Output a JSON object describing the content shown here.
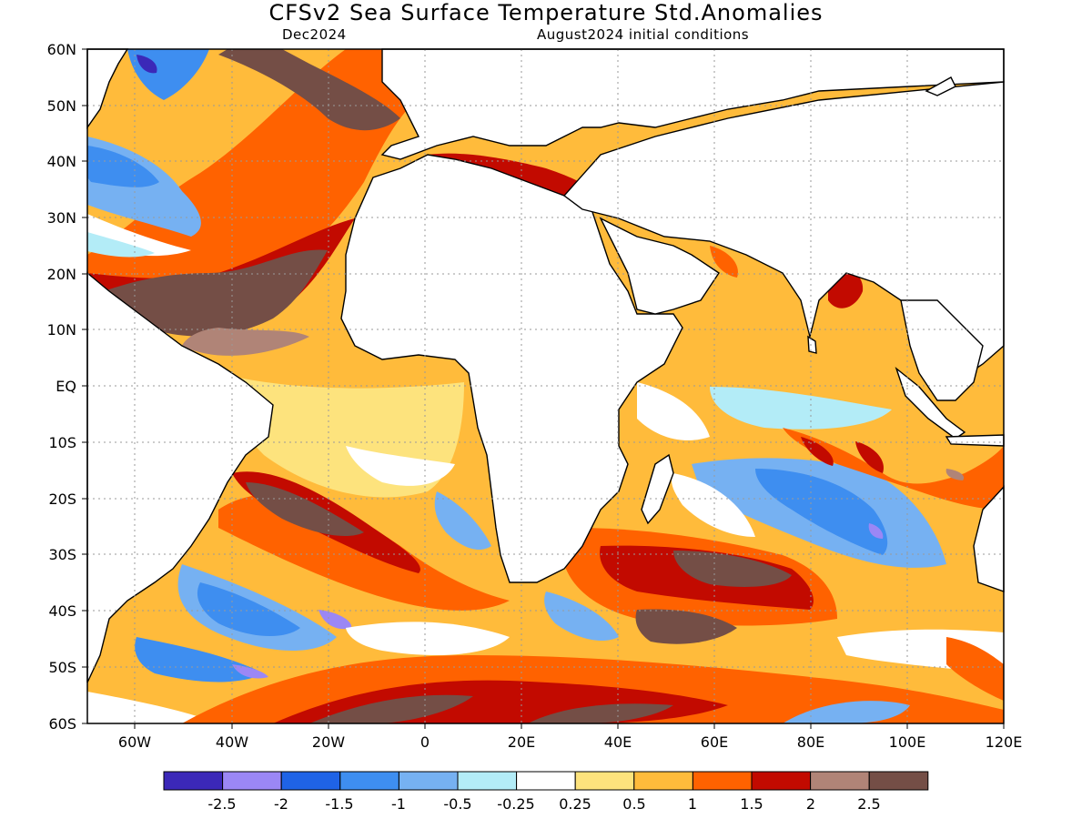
{
  "title": "CFSv2 Sea Surface Temperature Std.Anomalies",
  "subtitle_left": "Dec2024",
  "subtitle_right": "August2024 initial conditions",
  "lat_labels": [
    "60N",
    "50N",
    "40N",
    "30N",
    "20N",
    "10N",
    "EQ",
    "10S",
    "20S",
    "30S",
    "40S",
    "50S",
    "60S"
  ],
  "lon_labels": [
    "60W",
    "40W",
    "20W",
    "0",
    "20E",
    "40E",
    "60E",
    "80E",
    "100E",
    "120E"
  ],
  "colorbar": {
    "colors": [
      "#3b28b8",
      "#9b87f5",
      "#1f63e6",
      "#3e8ef0",
      "#76b1f2",
      "#b3ecf7",
      "#ffffff",
      "#fde37d",
      "#ffbb3b",
      "#ff6200",
      "#c20a00",
      "#b08477",
      "#744e46"
    ],
    "labels": [
      "-2.5",
      "-2",
      "-1.5",
      "-1",
      "-0.5",
      "-0.25",
      "0.25",
      "0.5",
      "1",
      "1.5",
      "2",
      "2.5"
    ]
  },
  "palette": {
    "land": "#ffffff",
    "coast": "#000000",
    "grid": "#9a9a9a"
  }
}
